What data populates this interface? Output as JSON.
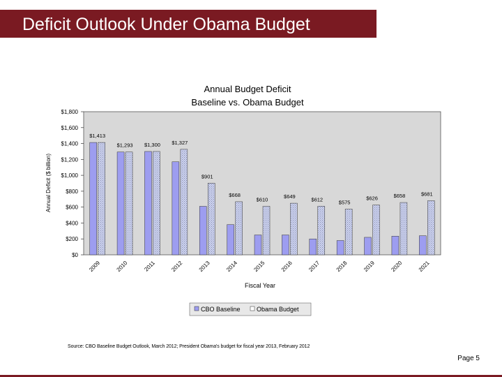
{
  "slide": {
    "title": "Deficit Outlook Under Obama Budget",
    "source": "Source: CBO Baseline Budget Outlook, March 2012; President Obama's budget for fiscal year 2013, February 2012",
    "page": "Page 5"
  },
  "colors": {
    "title_bar": "#7a1a22",
    "plot_bg": "#d8d8d8",
    "baseline_fill": "#9d9df0",
    "obama_fill": "#cdd3f0"
  },
  "chart_data": {
    "type": "bar",
    "title": "Annual Budget Deficit",
    "subtitle": "Baseline vs. Obama Budget",
    "xlabel": "Fiscal Year",
    "ylabel": "Annual Deficit ($ billion)",
    "ylim": [
      0,
      1800
    ],
    "yticks": [
      "$0",
      "$200",
      "$400",
      "$600",
      "$800",
      "$1,000",
      "$1,200",
      "$1,400",
      "$1,600",
      "$1,800"
    ],
    "grid": false,
    "legend_position": "bottom",
    "categories": [
      "2009",
      "2010",
      "2011",
      "2012",
      "2013",
      "2014",
      "2015",
      "2016",
      "2017",
      "2018",
      "2019",
      "2020",
      "2021"
    ],
    "series": [
      {
        "name": "CBO Baseline",
        "values": [
          1413,
          1293,
          1300,
          1170,
          610,
          380,
          250,
          250,
          200,
          180,
          220,
          235,
          240
        ]
      },
      {
        "name": "Obama Budget",
        "values": [
          1413,
          1293,
          1300,
          1327,
          901,
          668,
          610,
          649,
          612,
          575,
          626,
          658,
          681
        ]
      }
    ],
    "data_labels": [
      "$1,413",
      "$1,293",
      "$1,300",
      "$1,327",
      "$901",
      "$668",
      "$610",
      "$649",
      "$612",
      "$575",
      "$626",
      "$658",
      "$681"
    ]
  }
}
